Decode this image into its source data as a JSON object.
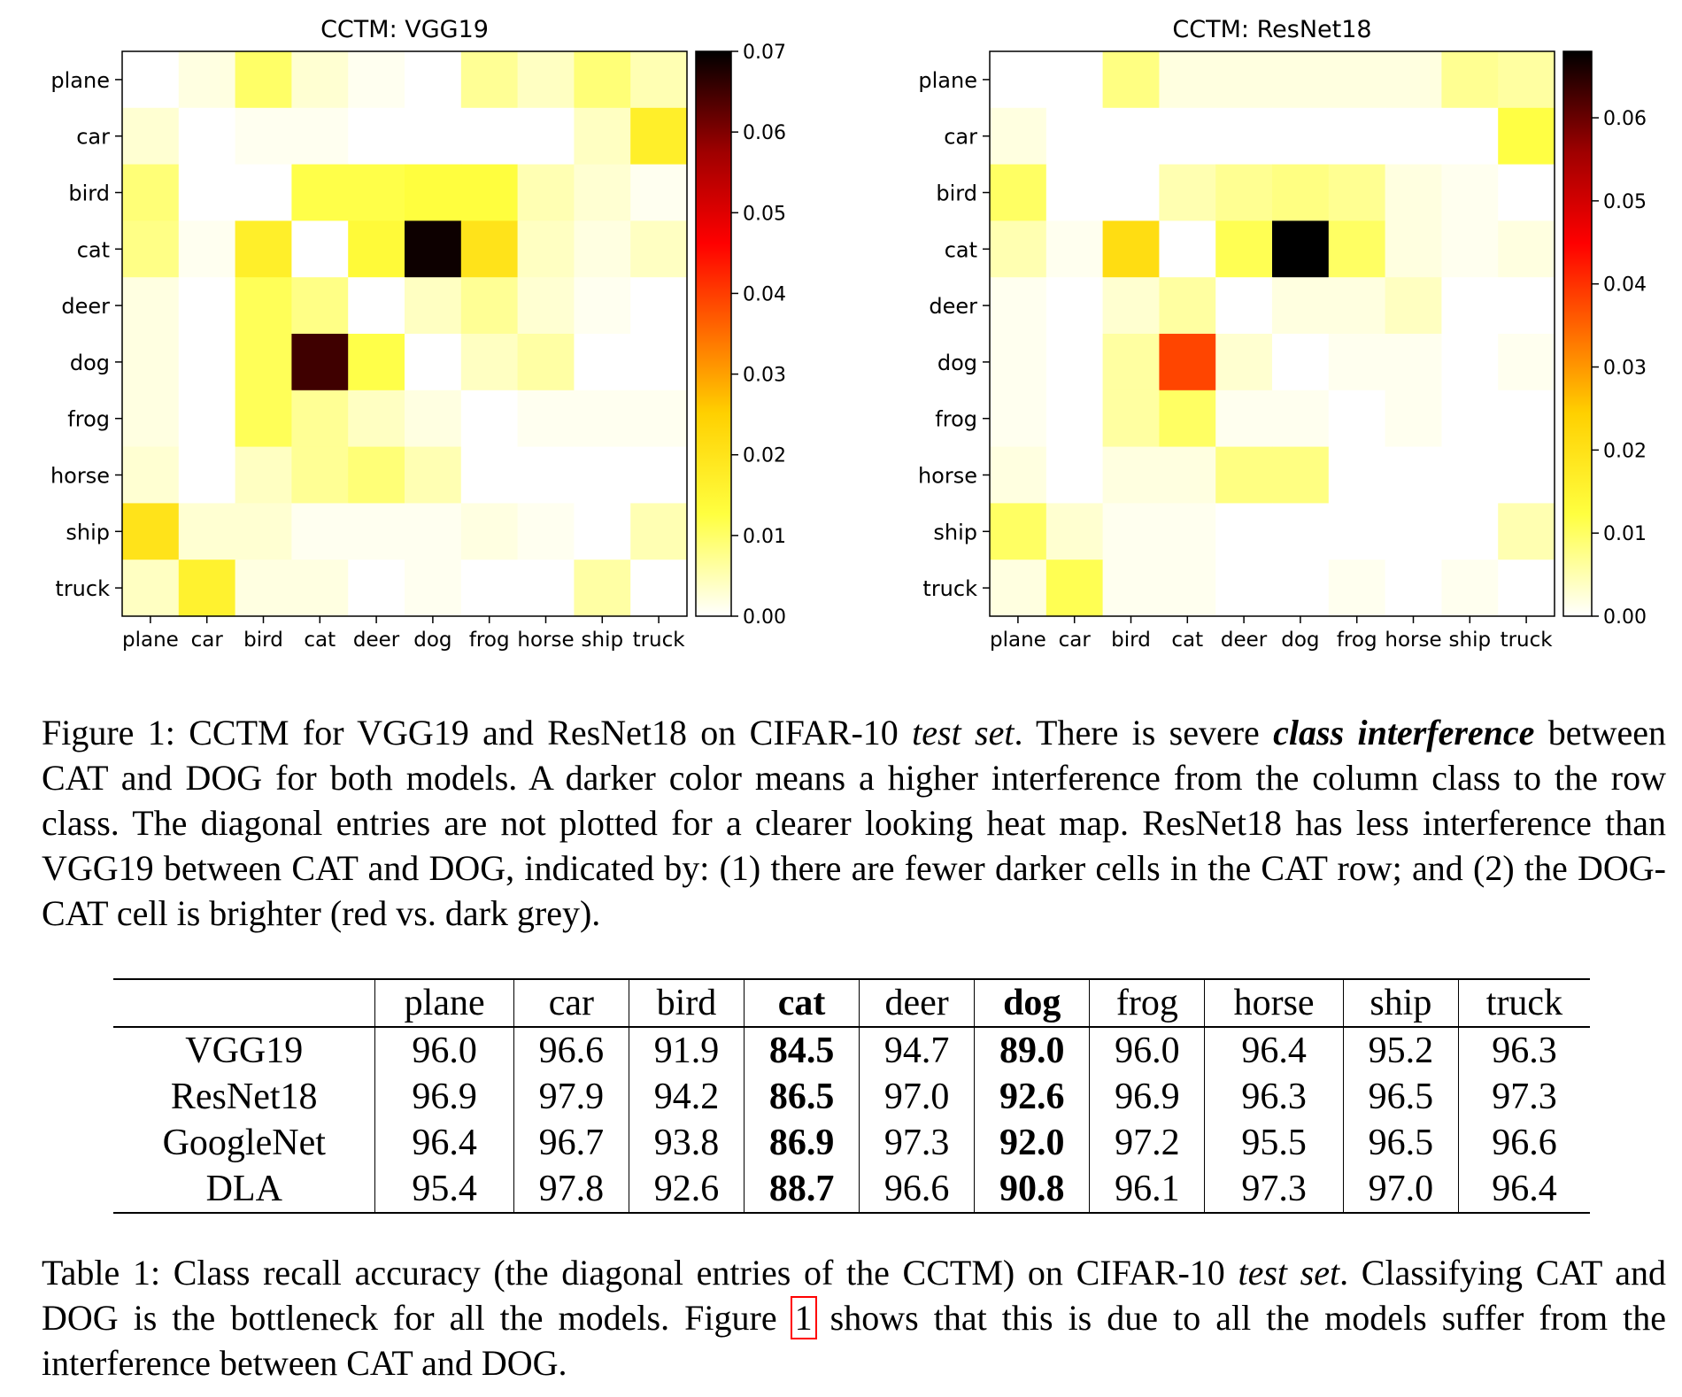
{
  "chart_data": [
    {
      "type": "heatmap",
      "title": "CCTM: VGG19",
      "rows": [
        "plane",
        "car",
        "bird",
        "cat",
        "deer",
        "dog",
        "frog",
        "horse",
        "ship",
        "truck"
      ],
      "cols": [
        "plane",
        "car",
        "bird",
        "cat",
        "deer",
        "dog",
        "frog",
        "horse",
        "ship",
        "truck"
      ],
      "colorbar": {
        "min": 0.0,
        "max": 0.07,
        "ticks": [
          "0.00",
          "0.01",
          "0.02",
          "0.03",
          "0.04",
          "0.05",
          "0.06",
          "0.07"
        ],
        "colormap": "hot_r"
      },
      "values": [
        [
          0.0,
          0.002,
          0.01,
          0.003,
          0.001,
          0.0,
          0.007,
          0.004,
          0.009,
          0.005
        ],
        [
          0.003,
          0.0,
          0.001,
          0.001,
          0.0,
          0.0,
          0.0,
          0.0,
          0.004,
          0.017
        ],
        [
          0.009,
          0.0,
          0.0,
          0.012,
          0.012,
          0.013,
          0.013,
          0.005,
          0.003,
          0.001
        ],
        [
          0.008,
          0.001,
          0.017,
          0.0,
          0.014,
          0.069,
          0.02,
          0.004,
          0.002,
          0.004
        ],
        [
          0.002,
          0.0,
          0.011,
          0.008,
          0.0,
          0.004,
          0.007,
          0.003,
          0.001,
          0.0
        ],
        [
          0.002,
          0.0,
          0.011,
          0.065,
          0.012,
          0.0,
          0.004,
          0.006,
          0.0,
          0.0
        ],
        [
          0.002,
          0.0,
          0.011,
          0.007,
          0.004,
          0.002,
          0.0,
          0.001,
          0.001,
          0.001
        ],
        [
          0.003,
          0.0,
          0.004,
          0.007,
          0.009,
          0.005,
          0.0,
          0.0,
          0.0,
          0.0
        ],
        [
          0.02,
          0.003,
          0.003,
          0.001,
          0.001,
          0.001,
          0.002,
          0.001,
          0.0,
          0.005
        ],
        [
          0.004,
          0.016,
          0.002,
          0.002,
          0.0,
          0.001,
          0.0,
          0.0,
          0.006,
          0.0
        ]
      ]
    },
    {
      "type": "heatmap",
      "title": "CCTM: ResNet18",
      "rows": [
        "plane",
        "car",
        "bird",
        "cat",
        "deer",
        "dog",
        "frog",
        "horse",
        "ship",
        "truck"
      ],
      "cols": [
        "plane",
        "car",
        "bird",
        "cat",
        "deer",
        "dog",
        "frog",
        "horse",
        "ship",
        "truck"
      ],
      "colorbar": {
        "min": 0.0,
        "max": 0.068,
        "ticks": [
          "0.00",
          "0.01",
          "0.02",
          "0.03",
          "0.04",
          "0.05",
          "0.06"
        ],
        "colormap": "hot_r"
      },
      "values": [
        [
          0.0,
          0.0,
          0.008,
          0.002,
          0.002,
          0.002,
          0.002,
          0.002,
          0.007,
          0.006
        ],
        [
          0.002,
          0.0,
          0.0,
          0.0,
          0.0,
          0.0,
          0.0,
          0.0,
          0.0,
          0.012
        ],
        [
          0.01,
          0.0,
          0.0,
          0.005,
          0.007,
          0.008,
          0.007,
          0.002,
          0.001,
          0.0
        ],
        [
          0.005,
          0.001,
          0.021,
          0.0,
          0.011,
          0.068,
          0.01,
          0.002,
          0.001,
          0.002
        ],
        [
          0.001,
          0.0,
          0.003,
          0.006,
          0.0,
          0.002,
          0.002,
          0.004,
          0.0,
          0.0
        ],
        [
          0.001,
          0.0,
          0.006,
          0.038,
          0.003,
          0.0,
          0.001,
          0.001,
          0.0,
          0.001
        ],
        [
          0.001,
          0.0,
          0.006,
          0.01,
          0.001,
          0.001,
          0.0,
          0.001,
          0.0,
          0.0
        ],
        [
          0.002,
          0.0,
          0.002,
          0.002,
          0.008,
          0.008,
          0.0,
          0.0,
          0.0,
          0.0
        ],
        [
          0.01,
          0.003,
          0.001,
          0.001,
          0.0,
          0.0,
          0.0,
          0.0,
          0.0,
          0.005
        ],
        [
          0.002,
          0.011,
          0.001,
          0.001,
          0.0,
          0.0,
          0.001,
          0.0,
          0.001,
          0.0
        ]
      ]
    }
  ],
  "figure_caption": {
    "label": "Figure 1: ",
    "part1": "CCTM for VGG19 and ResNet18 on CIFAR-10 ",
    "italic1": "test set",
    "part2": ". There is severe ",
    "bold_italic": "class interference",
    "part3": " between CAT and DOG for both models.  A darker color means a higher interference from the column class to the row class. The diagonal entries are not plotted for a clearer looking heat map. ResNet18 has less interference than VGG19 between CAT and DOG, indicated by: (1) there are fewer darker cells in the CAT row; and (2) the DOG-CAT cell is brighter (red vs. dark grey)."
  },
  "table": {
    "headers": [
      "",
      "plane",
      "car",
      "bird",
      "cat",
      "deer",
      "dog",
      "frog",
      "horse",
      "ship",
      "truck"
    ],
    "bold_columns": [
      4,
      6
    ],
    "rows": [
      [
        "VGG19",
        "96.0",
        "96.6",
        "91.9",
        "84.5",
        "94.7",
        "89.0",
        "96.0",
        "96.4",
        "95.2",
        "96.3"
      ],
      [
        "ResNet18",
        "96.9",
        "97.9",
        "94.2",
        "86.5",
        "97.0",
        "92.6",
        "96.9",
        "96.3",
        "96.5",
        "97.3"
      ],
      [
        "GoogleNet",
        "96.4",
        "96.7",
        "93.8",
        "86.9",
        "97.3",
        "92.0",
        "97.2",
        "95.5",
        "96.5",
        "96.6"
      ],
      [
        "DLA",
        "95.4",
        "97.8",
        "92.6",
        "88.7",
        "96.6",
        "90.8",
        "96.1",
        "97.3",
        "97.0",
        "96.4"
      ]
    ]
  },
  "table_caption": {
    "label": "Table 1: ",
    "part1": "Class recall accuracy (the diagonal entries of the CCTM) on CIFAR-10 ",
    "italic1": "test set",
    "part2": ". Classifying CAT and DOG is the bottleneck for all the models. Figure ",
    "ref": "1",
    "part3": " shows that this is due to all the models suffer from the interference between CAT and DOG."
  }
}
